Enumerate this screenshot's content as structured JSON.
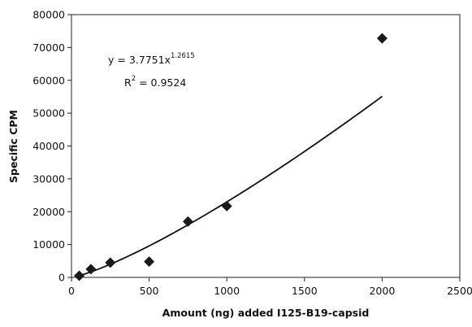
{
  "chart_data": {
    "type": "scatter",
    "xlabel": "Amount (ng) added I125-B19-capsid",
    "ylabel": "Specific CPM",
    "xlim": [
      0,
      2500
    ],
    "ylim": [
      0,
      80000
    ],
    "xticks": [
      0,
      500,
      1000,
      1500,
      2000,
      2500
    ],
    "yticks": [
      0,
      10000,
      20000,
      30000,
      40000,
      50000,
      60000,
      70000,
      80000
    ],
    "grid": false,
    "legend": "none",
    "marker": "diamond",
    "marker_color": "#1a1a1a",
    "series": [
      {
        "points": [
          {
            "x": 50,
            "y": 500
          },
          {
            "x": 125,
            "y": 2500
          },
          {
            "x": 250,
            "y": 4500
          },
          {
            "x": 500,
            "y": 4800
          },
          {
            "x": 750,
            "y": 17000
          },
          {
            "x": 1000,
            "y": 21700
          },
          {
            "x": 2000,
            "y": 72800
          }
        ]
      }
    ],
    "trendline": {
      "type": "power",
      "a": 3.7751,
      "b": 1.2615,
      "x_range": [
        50,
        2000
      ],
      "equation_base": "y = 3.7751x",
      "equation_exponent": "1.2615",
      "r2_base": "R",
      "r2_exponent": "2",
      "r2_value": " = 0.9524"
    }
  }
}
